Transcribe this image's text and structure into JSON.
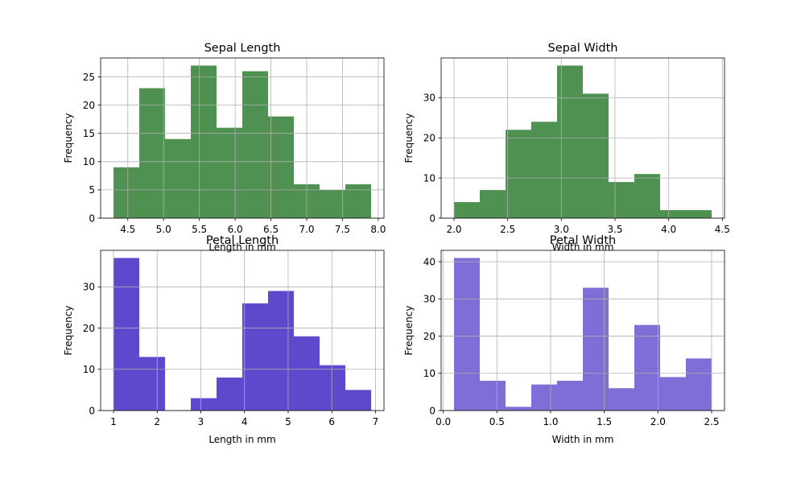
{
  "chart_data": [
    {
      "type": "bar",
      "title": "Sepal Length",
      "xlabel": "Length in mm",
      "ylabel": "Frequency",
      "color": "#4e9150",
      "bin_edges": [
        4.3,
        4.66,
        5.02,
        5.38,
        5.74,
        6.1,
        6.46,
        6.82,
        7.18,
        7.54,
        7.9
      ],
      "values": [
        9,
        23,
        14,
        27,
        16,
        26,
        18,
        6,
        5,
        6
      ],
      "xlim": [
        4.12,
        8.08
      ],
      "ylim": [
        0,
        28.35
      ],
      "xticks": [
        4.5,
        5.0,
        5.5,
        6.0,
        6.5,
        7.0,
        7.5,
        8.0
      ],
      "xtick_labels": [
        "4.5",
        "5.0",
        "5.5",
        "6.0",
        "6.5",
        "7.0",
        "7.5",
        "8.0"
      ],
      "yticks": [
        0,
        5,
        10,
        15,
        20,
        25
      ],
      "ytick_labels": [
        "0",
        "5",
        "10",
        "15",
        "20",
        "25"
      ],
      "grid": true
    },
    {
      "type": "bar",
      "title": "Sepal Width",
      "xlabel": "Width in mm",
      "ylabel": "Frequency",
      "color": "#4e9150",
      "bin_edges": [
        2.0,
        2.24,
        2.48,
        2.72,
        2.96,
        3.2,
        3.44,
        3.68,
        3.92,
        4.16,
        4.4
      ],
      "values": [
        4,
        7,
        22,
        24,
        38,
        31,
        9,
        11,
        2,
        2
      ],
      "xlim": [
        1.88,
        4.52
      ],
      "ylim": [
        0,
        39.9
      ],
      "xticks": [
        2.0,
        2.5,
        3.0,
        3.5,
        4.0,
        4.5
      ],
      "xtick_labels": [
        "2.0",
        "2.5",
        "3.0",
        "3.5",
        "4.0",
        "4.5"
      ],
      "yticks": [
        0,
        10,
        20,
        30
      ],
      "ytick_labels": [
        "0",
        "10",
        "20",
        "30"
      ],
      "grid": true
    },
    {
      "type": "bar",
      "title": "Petal Length",
      "xlabel": "Length in mm",
      "ylabel": "Frequency",
      "color": "#5e48cc",
      "bin_edges": [
        1.0,
        1.59,
        2.18,
        2.77,
        3.36,
        3.95,
        4.54,
        5.13,
        5.72,
        6.31,
        6.9
      ],
      "values": [
        37,
        13,
        0,
        3,
        8,
        26,
        29,
        18,
        11,
        5
      ],
      "xlim": [
        0.705,
        7.195
      ],
      "ylim": [
        0,
        38.85
      ],
      "xticks": [
        1,
        2,
        3,
        4,
        5,
        6,
        7
      ],
      "xtick_labels": [
        "1",
        "2",
        "3",
        "4",
        "5",
        "6",
        "7"
      ],
      "yticks": [
        0,
        10,
        20,
        30
      ],
      "ytick_labels": [
        "0",
        "10",
        "20",
        "30"
      ],
      "grid": true
    },
    {
      "type": "bar",
      "title": "Petal Width",
      "xlabel": "Width in mm",
      "ylabel": "Frequency",
      "color": "#7f6ed5",
      "bin_edges": [
        0.1,
        0.34,
        0.58,
        0.82,
        1.06,
        1.3,
        1.54,
        1.78,
        2.02,
        2.26,
        2.5
      ],
      "values": [
        41,
        8,
        1,
        7,
        8,
        33,
        6,
        23,
        9,
        14
      ],
      "xlim": [
        -0.02,
        2.62
      ],
      "ylim": [
        0,
        43.05
      ],
      "xticks": [
        0.0,
        0.5,
        1.0,
        1.5,
        2.0,
        2.5
      ],
      "xtick_labels": [
        "0.0",
        "0.5",
        "1.0",
        "1.5",
        "2.0",
        "2.5"
      ],
      "yticks": [
        0,
        10,
        20,
        30,
        40
      ],
      "ytick_labels": [
        "0",
        "10",
        "20",
        "30",
        "40"
      ],
      "grid": true
    }
  ]
}
